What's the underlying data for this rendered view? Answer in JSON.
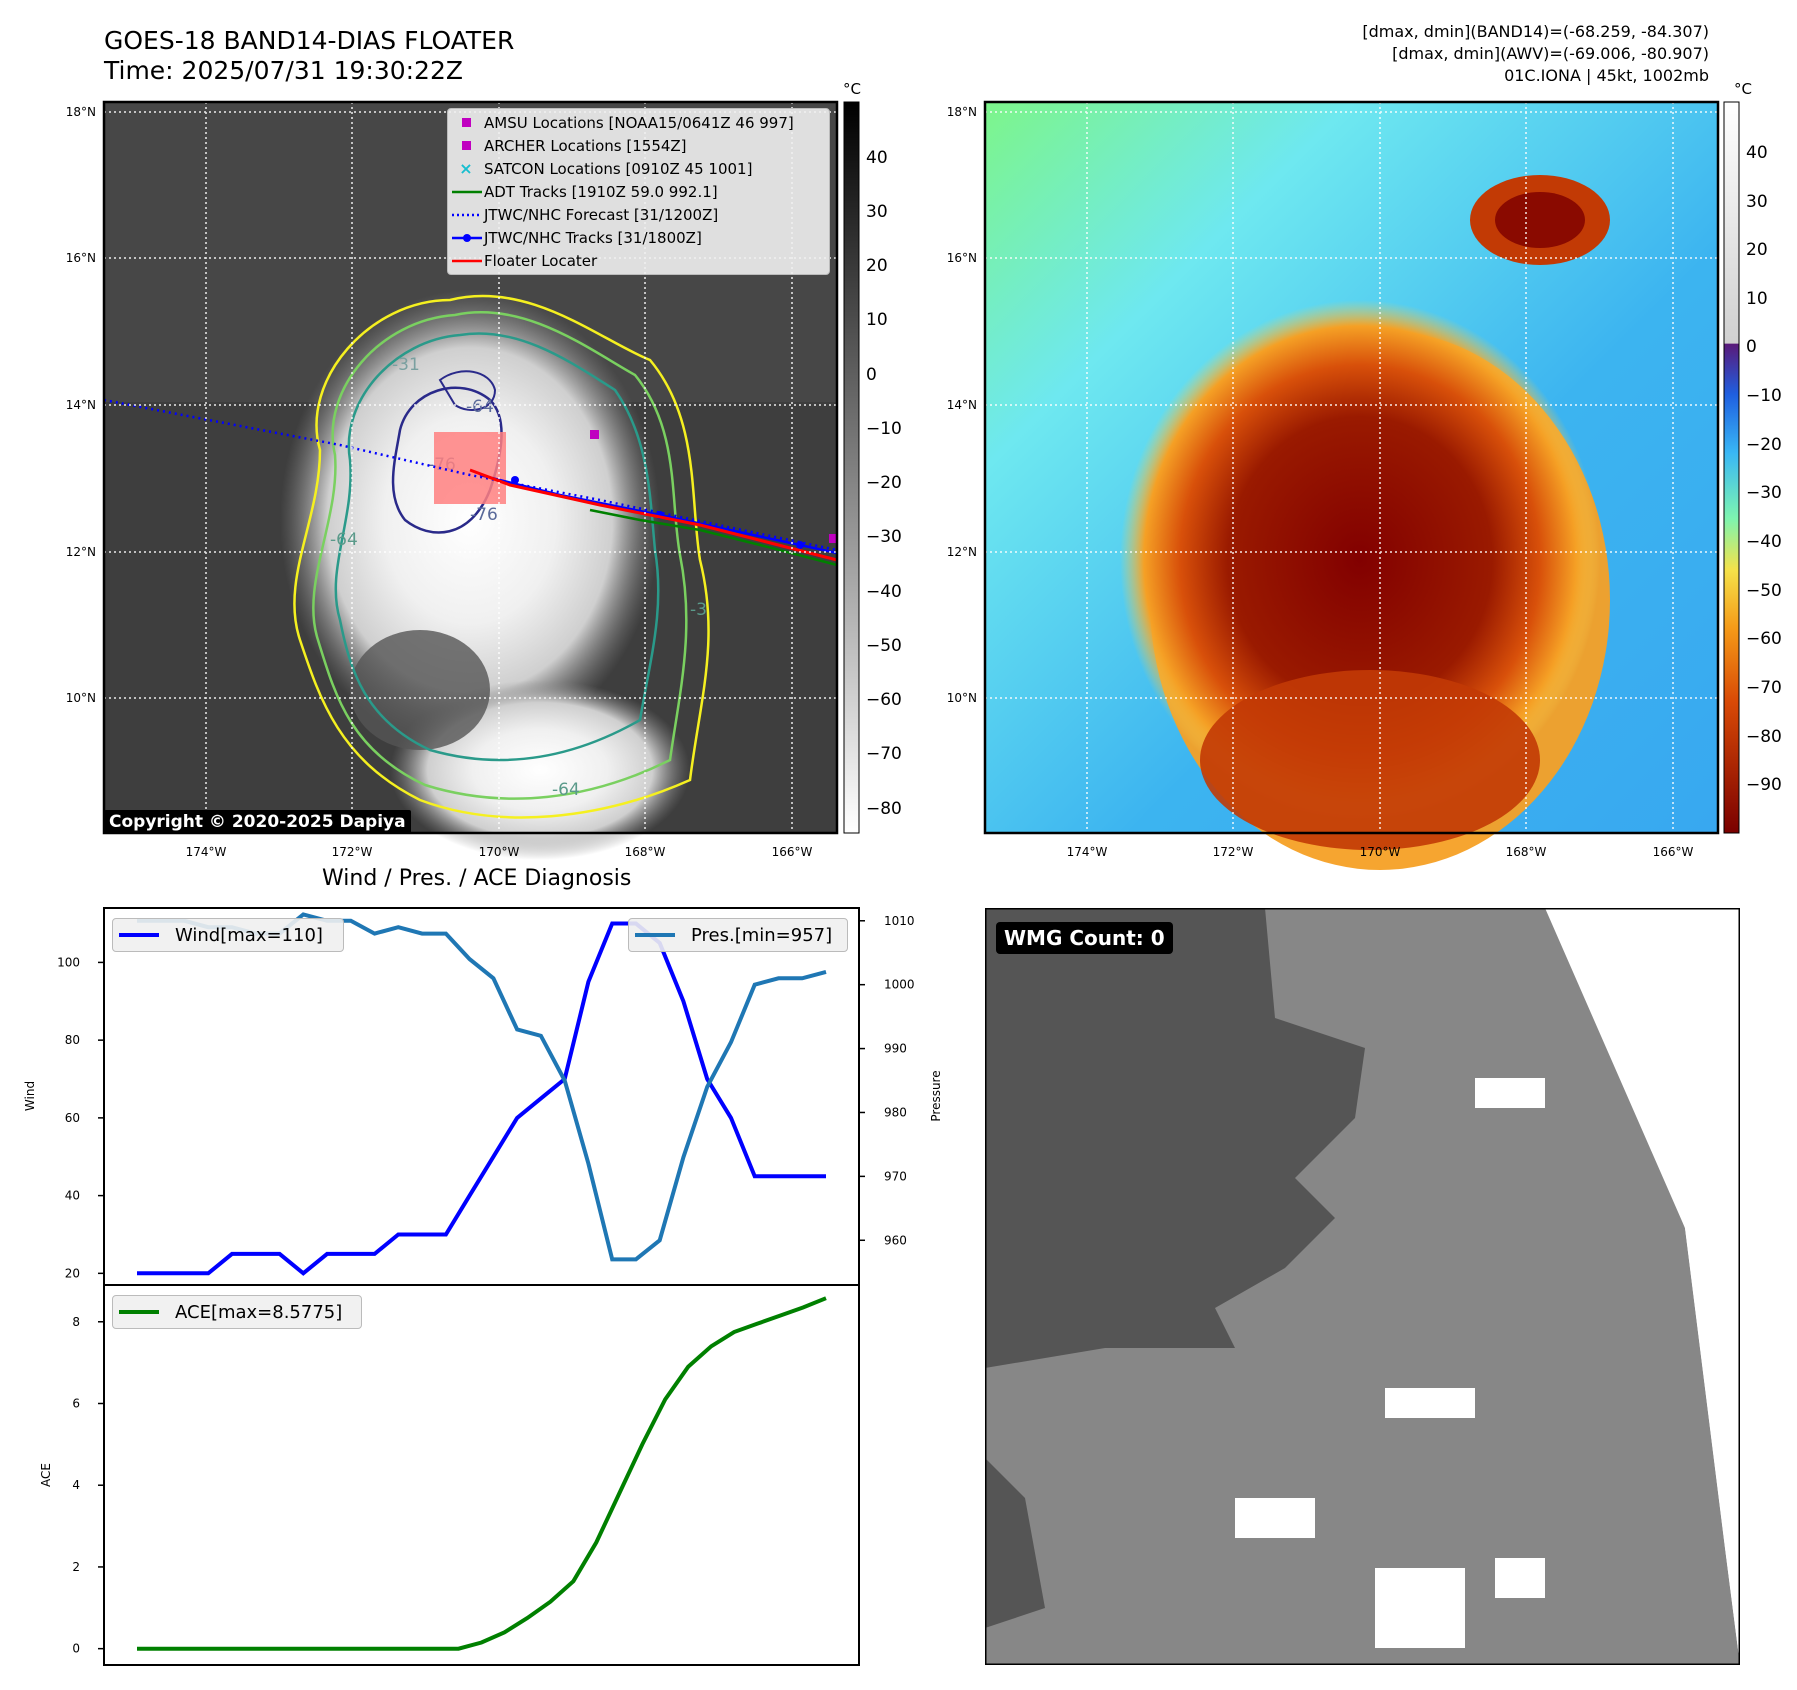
{
  "header": {
    "title_line1": "GOES-18 BAND14-DIAS FLOATER",
    "title_line2": "Time: 2025/07/31 19:30:22Z",
    "right_line1": "[dmax, dmin](BAND14)=(-68.259, -84.307)",
    "right_line2": "[dmax, dmin](AWV)=(-69.006, -80.907)",
    "right_line3": "01C.IONA | 45kt, 1002mb"
  },
  "copyright": "Copyright © 2020-2025 Dapiya",
  "wmg_badge": "WMG Count: 0",
  "colorbar_unit": "°C",
  "colors": {
    "wind": "#0000ff",
    "pressure": "#1f77b4",
    "ace": "#008000",
    "amsu": "#c000c0",
    "archer": "#c000c0",
    "satcon": "#17becf",
    "adt": "#008000",
    "forecast": "#0000ff",
    "tracks": "#0000ff",
    "floater": "#ff0000"
  },
  "legend_ir": [
    {
      "label": "AMSU Locations [NOAA15/0641Z 46 997]",
      "symbol": "square",
      "color": "#c000c0"
    },
    {
      "label": "ARCHER Locations [1554Z]",
      "symbol": "square",
      "color": "#c000c0"
    },
    {
      "label": "SATCON Locations [0910Z 45 1001]",
      "symbol": "x",
      "color": "#17becf"
    },
    {
      "label": "ADT Tracks [1910Z 59.0 992.1]",
      "symbol": "line",
      "color": "#008000"
    },
    {
      "label": "JTWC/NHC Forecast [31/1200Z]",
      "symbol": "dotted",
      "color": "#0000ff"
    },
    {
      "label": "JTWC/NHC Tracks [31/1800Z]",
      "symbol": "line-dot",
      "color": "#0000ff"
    },
    {
      "label": "Floater Locater",
      "symbol": "line",
      "color": "#ff0000"
    }
  ],
  "map": {
    "lon_ticks": [
      "174°W",
      "172°W",
      "170°W",
      "168°W",
      "166°W"
    ],
    "lat_ticks": [
      "18°N",
      "16°N",
      "14°N",
      "12°N",
      "10°N"
    ],
    "contour_labels": [
      "-64",
      "-76",
      "-64",
      "-76",
      "-31",
      "-64",
      "-3"
    ]
  },
  "colorbar_ir": {
    "ticks": [
      "40",
      "30",
      "20",
      "10",
      "0",
      "−10",
      "−20",
      "−30",
      "−40",
      "−50",
      "−60",
      "−70",
      "−80"
    ]
  },
  "colorbar_dias": {
    "ticks": [
      "40",
      "30",
      "20",
      "10",
      "0",
      "−10",
      "−20",
      "−30",
      "−40",
      "−50",
      "−60",
      "−70",
      "−80",
      "−90"
    ]
  },
  "diag_title": "Wind / Pres. / ACE Diagnosis",
  "chart_data": [
    {
      "type": "line",
      "title": "Wind / Pres. / ACE Diagnosis",
      "ylabel": "Wind",
      "y2label": "Pressure",
      "ylim": [
        17,
        114
      ],
      "y2lim": [
        953,
        1012
      ],
      "yticks": [
        "20",
        "40",
        "60",
        "80",
        "100"
      ],
      "y2ticks": [
        "960",
        "970",
        "980",
        "990",
        "1000",
        "1010"
      ],
      "series": [
        {
          "name": "Wind[max=110]",
          "axis": "left",
          "values": [
            20,
            20,
            20,
            20,
            25,
            25,
            25,
            20,
            25,
            25,
            25,
            30,
            30,
            30,
            40,
            50,
            60,
            65,
            70,
            95,
            110,
            110,
            105,
            90,
            70,
            60,
            45,
            45,
            45,
            45
          ]
        },
        {
          "name": "Pres.[min=957]",
          "axis": "right",
          "values": [
            1010,
            1010,
            1010,
            1009,
            1009,
            1008,
            1008,
            1011,
            1010,
            1010,
            1008,
            1009,
            1008,
            1008,
            1004,
            1001,
            993,
            992,
            985,
            972,
            957,
            957,
            960,
            973,
            984,
            991,
            1000,
            1001,
            1001,
            1002
          ]
        }
      ]
    },
    {
      "type": "line",
      "ylabel": "ACE",
      "ylim": [
        -0.4,
        8.9
      ],
      "yticks": [
        "0",
        "2",
        "4",
        "6",
        "8"
      ],
      "series": [
        {
          "name": "ACE[max=8.5775]",
          "values": [
            0,
            0,
            0,
            0,
            0,
            0,
            0,
            0,
            0,
            0,
            0,
            0,
            0,
            0,
            0,
            0.15,
            0.4,
            0.75,
            1.15,
            1.65,
            2.6,
            3.8,
            5.0,
            6.1,
            6.9,
            7.4,
            7.75,
            7.95,
            8.15,
            8.35,
            8.5775
          ]
        }
      ]
    }
  ]
}
